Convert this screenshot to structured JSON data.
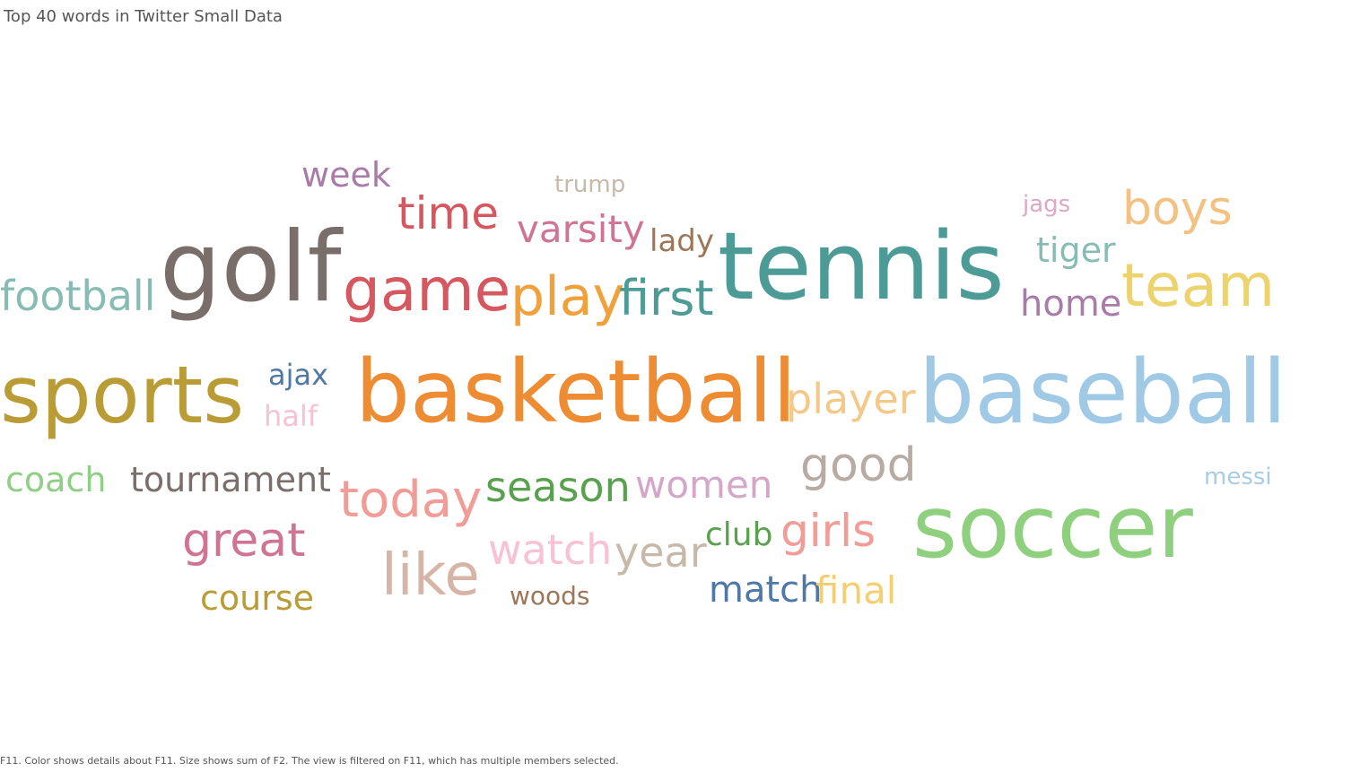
{
  "title": "Top 40 words in Twitter Small Data",
  "footer": "F11.  Color shows details about F11.  Size shows sum of F2. The view is filtered on F11, which has multiple members selected.",
  "chart_data": {
    "type": "wordcloud",
    "title": "Top 40 words in Twitter Small Data",
    "words": [
      {
        "text": "week",
        "color": "#a97ba8"
      },
      {
        "text": "trump",
        "color": "#c7b9a9"
      },
      {
        "text": "time",
        "color": "#d5575f"
      },
      {
        "text": "jags",
        "color": "#dba8c6"
      },
      {
        "text": "boys",
        "color": "#f2c183"
      },
      {
        "text": "varsity",
        "color": "#cf7493"
      },
      {
        "text": "lady",
        "color": "#9d7658"
      },
      {
        "text": "tiger",
        "color": "#86bcb4"
      },
      {
        "text": "golf",
        "color": "#7a6e6a"
      },
      {
        "text": "tennis",
        "color": "#4d9b96"
      },
      {
        "text": "football",
        "color": "#86bcb4"
      },
      {
        "text": "game",
        "color": "#d5575f"
      },
      {
        "text": "play",
        "color": "#f0a13b"
      },
      {
        "text": "first",
        "color": "#4d9b96"
      },
      {
        "text": "home",
        "color": "#a97ba8"
      },
      {
        "text": "team",
        "color": "#ecd36d"
      },
      {
        "text": "ajax",
        "color": "#4e79a7"
      },
      {
        "text": "sports",
        "color": "#b99c36"
      },
      {
        "text": "half",
        "color": "#f7c2d5"
      },
      {
        "text": "basketball",
        "color": "#ee8c34"
      },
      {
        "text": "player",
        "color": "#f4c889"
      },
      {
        "text": "baseball",
        "color": "#9fc9e5"
      },
      {
        "text": "good",
        "color": "#b8aba4"
      },
      {
        "text": "coach",
        "color": "#8fcf85"
      },
      {
        "text": "tournament",
        "color": "#7a6e6a"
      },
      {
        "text": "today",
        "color": "#f19c96"
      },
      {
        "text": "season",
        "color": "#59a14f"
      },
      {
        "text": "women",
        "color": "#d4a6c8"
      },
      {
        "text": "messi",
        "color": "#a9cce3"
      },
      {
        "text": "soccer",
        "color": "#8fd07f"
      },
      {
        "text": "great",
        "color": "#cf7493"
      },
      {
        "text": "watch",
        "color": "#f7c2d5"
      },
      {
        "text": "year",
        "color": "#c7b9a9"
      },
      {
        "text": "club",
        "color": "#59a14f"
      },
      {
        "text": "girls",
        "color": "#f19c96"
      },
      {
        "text": "like",
        "color": "#d7b5a6"
      },
      {
        "text": "course",
        "color": "#b99c36"
      },
      {
        "text": "woods",
        "color": "#9d7658"
      },
      {
        "text": "match",
        "color": "#4e79a7"
      },
      {
        "text": "final",
        "color": "#f4cf71"
      }
    ]
  }
}
